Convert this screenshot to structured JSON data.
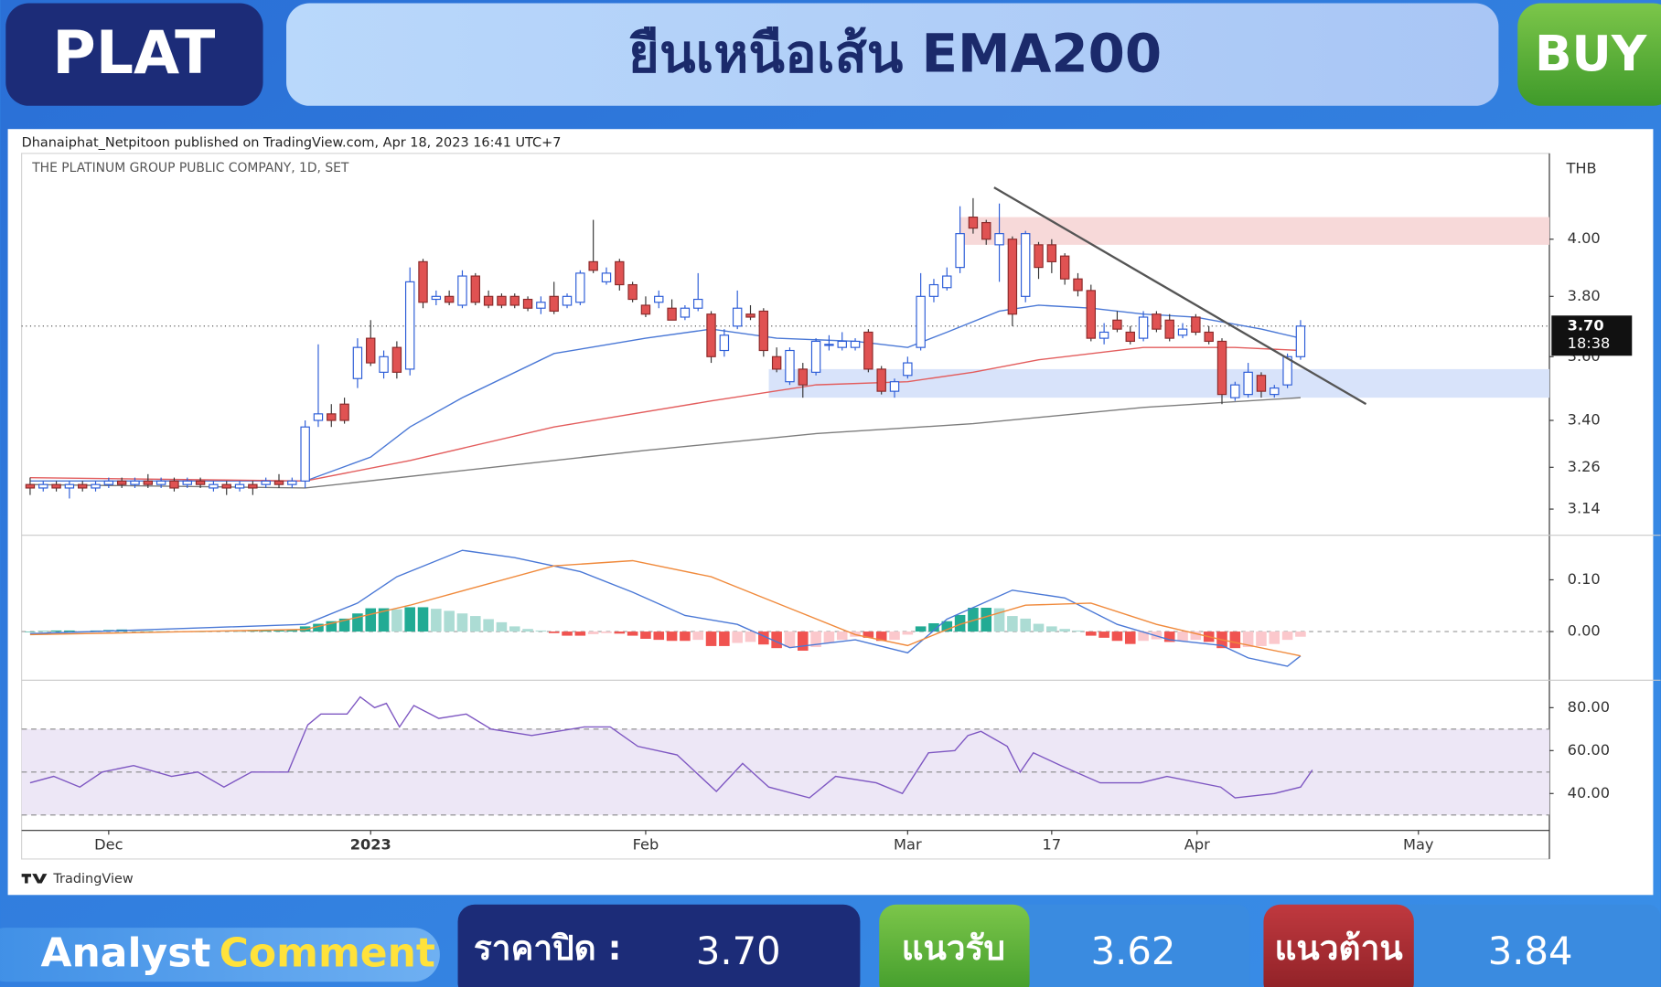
{
  "header": {
    "symbol": "PLAT",
    "title": "ยืนเหนือเส้น EMA200",
    "signal": "BUY"
  },
  "chart_data": {
    "type": "candlestick",
    "publisher": "Dhanaiphat_Netpitoon published on TradingView.com, Apr 18, 2023 16:41 UTC+7",
    "title": "THE PLATINUM GROUP PUBLIC COMPANY, 1D, SET",
    "currency": "THB",
    "watermark": "TradingView",
    "log_scale": true,
    "grid": false,
    "xlim": [
      -0.65,
      116
    ],
    "xticks": [
      {
        "value": 6,
        "label": "Dec"
      },
      {
        "value": 26,
        "label": "2023"
      },
      {
        "value": 47,
        "label": "Feb"
      },
      {
        "value": 67,
        "label": "Mar"
      },
      {
        "value": 78,
        "label": "17"
      },
      {
        "value": 89.1,
        "label": "Apr"
      },
      {
        "value": 106,
        "label": "May"
      }
    ],
    "ylim": [
      3.07,
      4.32
    ],
    "yticks": [
      3.14,
      3.26,
      {
        "value": 3.4,
        "label": "3.40"
      },
      {
        "value": 3.6,
        "label": "3.60"
      },
      {
        "value": 3.8,
        "label": "3.80"
      },
      {
        "value": 4,
        "label": "4.00"
      }
    ],
    "up_color": "#2a5bd7",
    "down_color": "#e05252",
    "candles": {
      "open": [
        3.21,
        3.2,
        3.21,
        3.2,
        3.21,
        3.2,
        3.21,
        3.22,
        3.21,
        3.22,
        3.21,
        3.22,
        3.21,
        3.22,
        3.2,
        3.21,
        3.2,
        3.21,
        3.21,
        3.22,
        3.21,
        3.22,
        3.4,
        3.42,
        3.45,
        3.53,
        3.66,
        3.55,
        3.63,
        3.56,
        3.92,
        3.79,
        3.8,
        3.77,
        3.87,
        3.8,
        3.8,
        3.8,
        3.79,
        3.76,
        3.8,
        3.77,
        3.78,
        3.92,
        3.85,
        3.92,
        3.84,
        3.77,
        3.78,
        3.76,
        3.73,
        3.76,
        3.74,
        3.62,
        3.7,
        3.74,
        3.75,
        3.6,
        3.52,
        3.56,
        3.55,
        3.64,
        3.63,
        3.63,
        3.68,
        3.56,
        3.49,
        3.54,
        3.63,
        3.8,
        3.83,
        3.9,
        4.08,
        4.06,
        3.98,
        4.0,
        3.8,
        3.98,
        3.98,
        3.94,
        3.86,
        3.82,
        3.66,
        3.72,
        3.68,
        3.66,
        3.74,
        3.72,
        3.67,
        3.73,
        3.68,
        3.65,
        3.47,
        3.48,
        3.54,
        3.48,
        3.51,
        3.6
      ],
      "high": [
        3.23,
        3.22,
        3.22,
        3.22,
        3.22,
        3.22,
        3.23,
        3.23,
        3.23,
        3.24,
        3.23,
        3.23,
        3.23,
        3.23,
        3.22,
        3.22,
        3.22,
        3.22,
        3.23,
        3.24,
        3.23,
        3.4,
        3.64,
        3.45,
        3.47,
        3.66,
        3.72,
        3.62,
        3.65,
        3.9,
        3.93,
        3.82,
        3.82,
        3.89,
        3.88,
        3.82,
        3.81,
        3.81,
        3.8,
        3.8,
        3.85,
        3.81,
        3.89,
        4.07,
        3.9,
        3.93,
        3.85,
        3.8,
        3.82,
        3.79,
        3.77,
        3.88,
        3.75,
        3.69,
        3.82,
        3.77,
        3.76,
        3.63,
        3.63,
        3.58,
        3.66,
        3.67,
        3.68,
        3.66,
        3.69,
        3.57,
        3.53,
        3.6,
        3.88,
        3.86,
        3.9,
        4.12,
        4.15,
        4.07,
        4.13,
        4.01,
        4.03,
        3.99,
        4.0,
        3.95,
        3.88,
        3.84,
        3.71,
        3.75,
        3.7,
        3.75,
        3.75,
        3.74,
        3.71,
        3.74,
        3.7,
        3.66,
        3.52,
        3.58,
        3.55,
        3.51,
        3.61,
        3.72
      ],
      "low": [
        3.18,
        3.19,
        3.19,
        3.17,
        3.19,
        3.19,
        3.2,
        3.2,
        3.2,
        3.2,
        3.2,
        3.19,
        3.2,
        3.2,
        3.19,
        3.18,
        3.19,
        3.18,
        3.2,
        3.2,
        3.2,
        3.2,
        3.38,
        3.38,
        3.39,
        3.5,
        3.57,
        3.53,
        3.53,
        3.54,
        3.76,
        3.77,
        3.77,
        3.76,
        3.77,
        3.76,
        3.76,
        3.76,
        3.75,
        3.74,
        3.74,
        3.76,
        3.77,
        3.88,
        3.84,
        3.82,
        3.78,
        3.73,
        3.76,
        3.72,
        3.72,
        3.75,
        3.58,
        3.6,
        3.69,
        3.72,
        3.6,
        3.55,
        3.51,
        3.47,
        3.54,
        3.62,
        3.62,
        3.62,
        3.55,
        3.48,
        3.47,
        3.53,
        3.62,
        3.78,
        3.82,
        3.88,
        4.02,
        3.98,
        3.85,
        3.7,
        3.78,
        3.86,
        3.88,
        3.84,
        3.8,
        3.65,
        3.64,
        3.68,
        3.64,
        3.65,
        3.68,
        3.65,
        3.66,
        3.67,
        3.64,
        3.45,
        3.46,
        3.47,
        3.47,
        3.47,
        3.5,
        3.59
      ],
      "close": [
        3.2,
        3.21,
        3.2,
        3.21,
        3.2,
        3.21,
        3.22,
        3.21,
        3.22,
        3.21,
        3.22,
        3.2,
        3.22,
        3.21,
        3.21,
        3.2,
        3.21,
        3.2,
        3.22,
        3.21,
        3.22,
        3.38,
        3.42,
        3.4,
        3.4,
        3.63,
        3.58,
        3.6,
        3.55,
        3.85,
        3.78,
        3.8,
        3.78,
        3.87,
        3.78,
        3.77,
        3.77,
        3.77,
        3.76,
        3.78,
        3.75,
        3.8,
        3.88,
        3.89,
        3.88,
        3.84,
        3.79,
        3.74,
        3.8,
        3.72,
        3.76,
        3.79,
        3.6,
        3.67,
        3.76,
        3.73,
        3.62,
        3.56,
        3.62,
        3.51,
        3.65,
        3.64,
        3.65,
        3.65,
        3.56,
        3.49,
        3.52,
        3.58,
        3.8,
        3.84,
        3.87,
        4.02,
        4.04,
        4.0,
        4.02,
        3.74,
        4.02,
        3.9,
        3.92,
        3.86,
        3.82,
        3.66,
        3.68,
        3.69,
        3.65,
        3.73,
        3.69,
        3.66,
        3.69,
        3.68,
        3.65,
        3.48,
        3.51,
        3.55,
        3.49,
        3.5,
        3.6,
        3.7
      ]
    },
    "lines": [
      {
        "color": "#4a78d6",
        "x": [
          0,
          21,
          26,
          29,
          33,
          40,
          47,
          52,
          57,
          63,
          67,
          70,
          74,
          77,
          81,
          85,
          89,
          94,
          97
        ],
        "values": [
          3.22,
          3.22,
          3.29,
          3.38,
          3.47,
          3.61,
          3.66,
          3.69,
          3.66,
          3.65,
          3.63,
          3.68,
          3.75,
          3.77,
          3.76,
          3.74,
          3.73,
          3.69,
          3.66
        ]
      },
      {
        "color": "#e35d5d",
        "x": [
          0,
          21,
          29,
          40,
          52,
          60,
          67,
          72,
          77,
          85,
          92,
          97
        ],
        "values": [
          3.23,
          3.22,
          3.28,
          3.38,
          3.46,
          3.51,
          3.52,
          3.55,
          3.59,
          3.63,
          3.63,
          3.62
        ]
      },
      {
        "color": "#7d7d7d",
        "x": [
          0,
          21,
          33,
          47,
          60,
          72,
          85,
          97
        ],
        "values": [
          3.21,
          3.2,
          3.25,
          3.31,
          3.36,
          3.39,
          3.44,
          3.47
        ]
      }
    ],
    "zones": [
      {
        "low": 3.98,
        "high": 4.08,
        "x_start": 71,
        "color": "#f7d9d9"
      },
      {
        "low": 3.47,
        "high": 3.56,
        "x_start": 56.4,
        "color": "#d8e3fa"
      }
    ],
    "trendline": {
      "x": [
        73.6,
        102
      ],
      "values": [
        4.19,
        3.45
      ],
      "color": "#555555"
    },
    "last_price": {
      "value": 3.7,
      "label": "3.70"
    },
    "countdown": "18:38",
    "macd": {
      "ylim": [
        -0.092,
        0.184
      ],
      "yticks": [
        {
          "value": 0,
          "label": "0.00"
        },
        {
          "value": 0.1,
          "label": "0.10"
        }
      ],
      "macd_color": "#4a78d6",
      "signal_color": "#f08a3c",
      "histogram_colors": [
        "#22ab94",
        "#acdcd4",
        "#f05350",
        "#fbc8cc"
      ],
      "x": [
        0,
        21,
        25,
        28,
        33,
        37,
        42,
        46,
        50,
        54,
        58,
        63,
        67,
        70,
        75,
        79,
        83,
        87,
        91,
        93,
        96,
        97
      ],
      "values": [
        -0.004,
        0.014,
        0.055,
        0.106,
        0.157,
        0.143,
        0.116,
        0.076,
        0.031,
        0.014,
        -0.031,
        -0.016,
        -0.041,
        0.024,
        0.08,
        0.065,
        0.014,
        -0.016,
        -0.027,
        -0.051,
        -0.067,
        -0.047
      ],
      "signal_x": [
        0,
        21,
        29,
        40,
        46,
        52,
        58,
        63,
        67,
        71,
        76,
        81,
        86,
        91,
        97
      ],
      "signal": [
        -0.006,
        0.004,
        0.051,
        0.127,
        0.137,
        0.106,
        0.045,
        -0.006,
        -0.027,
        0.014,
        0.051,
        0.055,
        0.014,
        -0.016,
        -0.047
      ],
      "histogram": [
        0,
        0.001,
        0.002,
        0.002,
        0.001,
        0.002,
        0.003,
        0.004,
        0.003,
        0.002,
        0.001,
        0,
        -0.001,
        0,
        0.001,
        0.001,
        0,
        0.001,
        0.002,
        0.002,
        0.004,
        0.01,
        0.015,
        0.02,
        0.025,
        0.035,
        0.045,
        0.045,
        0.043,
        0.047,
        0.047,
        0.044,
        0.04,
        0.035,
        0.03,
        0.024,
        0.018,
        0.01,
        0.005,
        0.002,
        -0.003,
        -0.008,
        -0.008,
        -0.005,
        -0.003,
        -0.004,
        -0.008,
        -0.014,
        -0.016,
        -0.018,
        -0.018,
        -0.016,
        -0.028,
        -0.028,
        -0.022,
        -0.02,
        -0.025,
        -0.032,
        -0.03,
        -0.037,
        -0.03,
        -0.022,
        -0.016,
        -0.01,
        -0.012,
        -0.018,
        -0.016,
        -0.006,
        0.01,
        0.016,
        0.02,
        0.032,
        0.046,
        0.046,
        0.045,
        0.03,
        0.025,
        0.015,
        0.01,
        0.005,
        0.002,
        -0.008,
        -0.012,
        -0.018,
        -0.024,
        -0.018,
        -0.015,
        -0.02,
        -0.018,
        -0.016,
        -0.02,
        -0.032,
        -0.032,
        -0.03,
        -0.028,
        -0.024,
        -0.016,
        -0.01
      ]
    },
    "rsi": {
      "ylim": [
        22.8,
        91.8
      ],
      "yticks": [
        {
          "value": 40,
          "label": "40.00"
        },
        {
          "value": 60,
          "label": "60.00"
        },
        {
          "value": 80,
          "label": "80.00"
        }
      ],
      "band": [
        30,
        70
      ],
      "midline": 50,
      "color": "#7e57c2",
      "band_color": "#ede7f6",
      "x": [
        0,
        1.8,
        3.8,
        5.5,
        7.9,
        10.8,
        12.8,
        14.8,
        16.9,
        19.7,
        21.2,
        22.2,
        24.2,
        25.2,
        26.3,
        27.2,
        28.2,
        29.3,
        31.2,
        33.3,
        35.2,
        38.3,
        42.3,
        44.3,
        46.4,
        49.4,
        52.4,
        54.4,
        56.4,
        59.5,
        61.5,
        64.6,
        66.6,
        68.6,
        70.6,
        71.6,
        72.6,
        74.6,
        75.6,
        76.6,
        78.7,
        81.7,
        84.8,
        86.8,
        90.9,
        92,
        95,
        97,
        97.9
      ],
      "values": [
        45,
        48,
        43,
        50,
        53,
        48,
        50,
        43,
        50,
        50,
        72,
        77,
        77,
        85,
        80,
        82,
        71,
        81,
        75,
        77,
        70,
        67,
        71,
        71,
        62,
        58,
        41,
        54,
        43,
        38,
        48,
        45,
        40,
        59,
        60,
        67,
        69,
        62,
        50,
        59,
        53,
        45,
        45,
        48,
        43,
        38,
        40,
        43,
        51
      ]
    }
  },
  "footer": {
    "comment_1": "Analyst",
    "comment_2": "Comment",
    "close_label": "ราคาปิด :",
    "close": "3.70",
    "support_label": "แนวรับ",
    "support": "3.62",
    "resistance_label": "แนวต้าน",
    "resistance": "3.84"
  }
}
